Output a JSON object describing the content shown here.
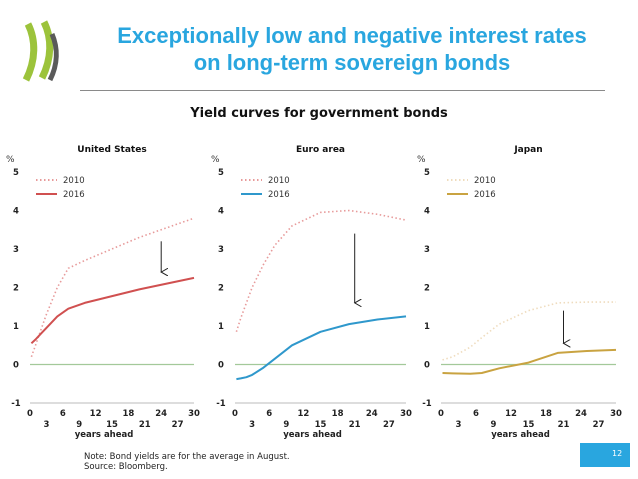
{
  "slide": {
    "title_lines": [
      "Exceptionally low and negative interest rates",
      "on long-term sovereign bonds"
    ],
    "subtitle": "Yield curves for government bonds",
    "note": "Note: Bond yields are for the average in August.",
    "source": "Source: Bloomberg.",
    "page_number": "12",
    "colors": {
      "title": "#29a6df",
      "logo": "#9cc33b",
      "logo_dark": "#5a5a5a"
    }
  },
  "chart_data": [
    {
      "type": "line",
      "title": "United States",
      "ylabel": "%",
      "xlabel": "years ahead",
      "ylim": [
        -1,
        5
      ],
      "xlim": [
        0,
        30
      ],
      "yticks": [
        -1,
        0,
        1,
        2,
        3,
        4,
        5
      ],
      "xticks_top": [
        0,
        6,
        12,
        18,
        24,
        30
      ],
      "xticks_bottom": [
        3,
        9,
        15,
        21,
        27
      ],
      "legend": "top-left",
      "series": [
        {
          "name": "2010",
          "style": "dotted",
          "color": "#e79a9a",
          "x": [
            0.25,
            1,
            2,
            3,
            5,
            7,
            10,
            20,
            30
          ],
          "y": [
            0.2,
            0.5,
            0.9,
            1.3,
            2.0,
            2.5,
            2.7,
            3.3,
            3.8
          ]
        },
        {
          "name": "2016",
          "style": "solid",
          "color": "#d05050",
          "x": [
            0.25,
            1,
            2,
            3,
            5,
            7,
            10,
            20,
            30
          ],
          "y": [
            0.55,
            0.65,
            0.8,
            0.95,
            1.25,
            1.45,
            1.6,
            1.95,
            2.25
          ]
        }
      ],
      "arrow": {
        "x": 24,
        "from": 3.2,
        "to": 2.4
      }
    },
    {
      "type": "line",
      "title": "Euro area",
      "ylabel": "%",
      "xlabel": "years ahead",
      "ylim": [
        -1,
        5
      ],
      "xlim": [
        0,
        30
      ],
      "yticks": [
        -1,
        0,
        1,
        2,
        3,
        4,
        5
      ],
      "xticks_top": [
        0,
        6,
        12,
        18,
        24,
        30
      ],
      "xticks_bottom": [
        3,
        9,
        15,
        21,
        27
      ],
      "legend": "top-left",
      "series": [
        {
          "name": "2010",
          "style": "dotted",
          "color": "#e79a9a",
          "x": [
            0.25,
            1,
            2,
            3,
            5,
            7,
            10,
            15,
            20,
            25,
            30
          ],
          "y": [
            0.85,
            1.2,
            1.6,
            2.0,
            2.6,
            3.1,
            3.6,
            3.95,
            4.0,
            3.9,
            3.75
          ]
        },
        {
          "name": "2016",
          "style": "solid",
          "color": "#2f98cc",
          "x": [
            0.25,
            1,
            2,
            3,
            5,
            7,
            10,
            15,
            20,
            25,
            30
          ],
          "y": [
            -0.38,
            -0.36,
            -0.33,
            -0.27,
            -0.08,
            0.15,
            0.5,
            0.85,
            1.05,
            1.17,
            1.25
          ]
        }
      ],
      "arrow": {
        "x": 21,
        "from": 3.4,
        "to": 1.6
      }
    },
    {
      "type": "line",
      "title": "Japan",
      "ylabel": "%",
      "xlabel": "years ahead",
      "ylim": [
        -1,
        5
      ],
      "xlim": [
        0,
        30
      ],
      "yticks": [
        -1,
        0,
        1,
        2,
        3,
        4,
        5
      ],
      "xticks_top": [
        0,
        6,
        12,
        18,
        24,
        30
      ],
      "xticks_bottom": [
        3,
        9,
        15,
        21,
        27
      ],
      "legend": "top-left",
      "series": [
        {
          "name": "2010",
          "style": "dotted",
          "color": "#efdcbe",
          "x": [
            0.25,
            2,
            5,
            7,
            10,
            15,
            20,
            25,
            30
          ],
          "y": [
            0.12,
            0.2,
            0.45,
            0.7,
            1.05,
            1.4,
            1.6,
            1.62,
            1.62
          ]
        },
        {
          "name": "2016",
          "style": "solid",
          "color": "#c9a341",
          "x": [
            0.25,
            2,
            5,
            7,
            10,
            15,
            20,
            25,
            30
          ],
          "y": [
            -0.22,
            -0.23,
            -0.24,
            -0.22,
            -0.1,
            0.05,
            0.3,
            0.35,
            0.38
          ]
        }
      ],
      "arrow": {
        "x": 21,
        "from": 1.4,
        "to": 0.55
      }
    }
  ]
}
